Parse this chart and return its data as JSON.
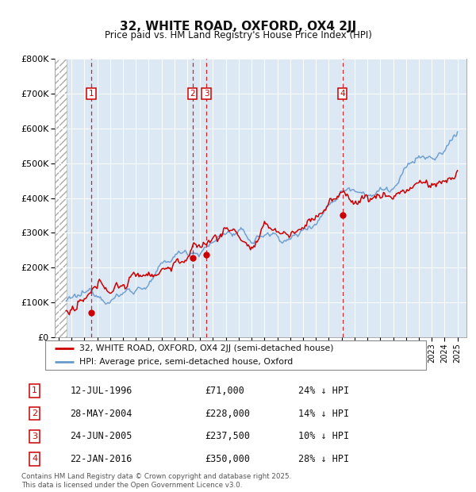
{
  "title": "32, WHITE ROAD, OXFORD, OX4 2JJ",
  "subtitle": "Price paid vs. HM Land Registry's House Price Index (HPI)",
  "background_color": "#dce9f5",
  "line_color_red": "#cc0000",
  "line_color_blue": "#6699cc",
  "ylim": [
    0,
    800000
  ],
  "yticks": [
    0,
    100000,
    200000,
    300000,
    400000,
    500000,
    600000,
    700000,
    800000
  ],
  "ytick_labels": [
    "£0",
    "£100K",
    "£200K",
    "£300K",
    "£400K",
    "£500K",
    "£600K",
    "£700K",
    "£800K"
  ],
  "xstart": 1994,
  "xend": 2025,
  "transactions": [
    {
      "num": 1,
      "x": 1996.53,
      "price": 71000
    },
    {
      "num": 2,
      "x": 2004.41,
      "price": 228000
    },
    {
      "num": 3,
      "x": 2005.48,
      "price": 237500
    },
    {
      "num": 4,
      "x": 2016.06,
      "price": 350000
    }
  ],
  "legend_line1": "32, WHITE ROAD, OXFORD, OX4 2JJ (semi-detached house)",
  "legend_line2": "HPI: Average price, semi-detached house, Oxford",
  "footer1": "Contains HM Land Registry data © Crown copyright and database right 2025.",
  "footer2": "This data is licensed under the Open Government Licence v3.0.",
  "table_rows": [
    {
      "num": 1,
      "date": "12-JUL-1996",
      "price": "£71,000",
      "pct": "24% ↓ HPI"
    },
    {
      "num": 2,
      "date": "28-MAY-2004",
      "price": "£228,000",
      "pct": "14% ↓ HPI"
    },
    {
      "num": 3,
      "date": "24-JUN-2005",
      "price": "£237,500",
      "pct": "10% ↓ HPI"
    },
    {
      "num": 4,
      "date": "22-JAN-2016",
      "price": "£350,000",
      "pct": "28% ↓ HPI"
    }
  ]
}
